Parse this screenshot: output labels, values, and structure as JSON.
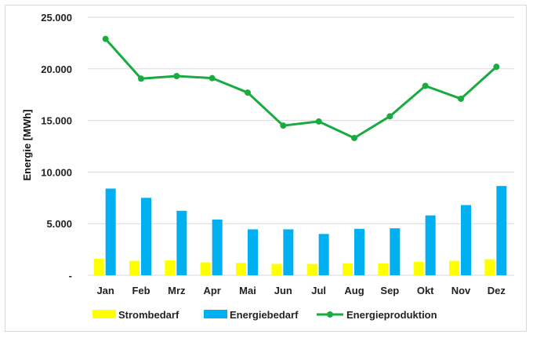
{
  "chart_data": {
    "type": "bar",
    "categories": [
      "Jan",
      "Feb",
      "Mrz",
      "Apr",
      "Mai",
      "Jun",
      "Jul",
      "Aug",
      "Sep",
      "Okt",
      "Nov",
      "Dez"
    ],
    "series": [
      {
        "name": "Strombedarf",
        "kind": "bar",
        "color": "#ffff00",
        "values": [
          1600,
          1400,
          1450,
          1250,
          1200,
          1100,
          1100,
          1150,
          1150,
          1300,
          1400,
          1550
        ]
      },
      {
        "name": "Energiebedarf",
        "kind": "bar",
        "color": "#00b0f0",
        "values": [
          8400,
          7500,
          6250,
          5400,
          4450,
          4450,
          4000,
          4500,
          4550,
          5800,
          6800,
          8650
        ]
      },
      {
        "name": "Energieproduktion",
        "kind": "line",
        "color": "#1aab40",
        "values": [
          22900,
          19050,
          19300,
          19100,
          17700,
          14500,
          14900,
          13300,
          15400,
          18350,
          17100,
          20200
        ]
      }
    ],
    "ylabel": "Energie [MWh]",
    "xlabel": "",
    "ylim": [
      0,
      25000
    ],
    "yticks": [
      0,
      5000,
      10000,
      15000,
      20000,
      25000
    ],
    "ytick_labels": [
      "-",
      "5.000",
      "10.000",
      "15.000",
      "20.000",
      "25.000"
    ],
    "grid": true,
    "legend": "bottom"
  }
}
